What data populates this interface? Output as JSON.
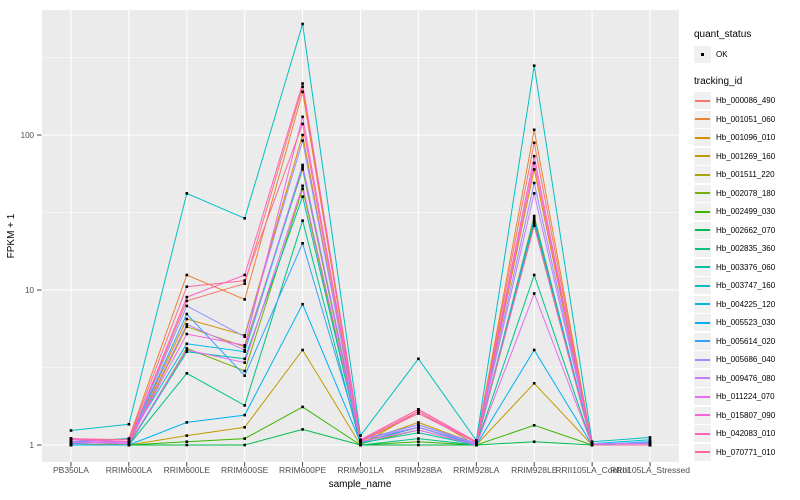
{
  "figure": {
    "bg": "#FFFFFF",
    "panel_bg": "#EBEBEB",
    "grid_color": "#FFFFFF",
    "tick_color": "#333333",
    "tick_label_color": "#4D4D4D",
    "axis_title_color": "#000000",
    "point_color": "#000000"
  },
  "legend": {
    "quant_status_title": "quant_status",
    "quant_ok_label": "OK",
    "tracking_id_title": "tracking_id"
  },
  "chart_data": {
    "type": "line",
    "title": "",
    "xlabel": "sample_name",
    "ylabel": "FPKM + 1",
    "y_scale": "log10",
    "ylim": [
      0.78,
      650
    ],
    "y_major_ticks": [
      1,
      10,
      100
    ],
    "y_tick_labels": [
      "1",
      "10",
      "100"
    ],
    "y_minor_ticks": [
      3.1623,
      31.623,
      316.23
    ],
    "grid": true,
    "legend_position": "right",
    "point_shape": "square",
    "categories": [
      "PB350LA",
      "RRIM600LA",
      "RRIM600LE",
      "RRIM600SE",
      "RRIM600PE",
      "RRIM901LA",
      "RRIM928BA",
      "RRIM928LA",
      "RRIM928LE",
      "RRII105LA_Control",
      "RRII105LA_Stressed"
    ],
    "series": [
      {
        "name": "Hb_000086_490",
        "color": "#F8766D",
        "values": [
          1.1,
          1.05,
          8.5,
          11.0,
          205,
          1.08,
          1.7,
          1.05,
          89,
          1.0,
          1.0
        ]
      },
      {
        "name": "Hb_001051_060",
        "color": "#EA8331",
        "values": [
          1.05,
          1.1,
          12.5,
          8.7,
          190,
          1.05,
          1.6,
          1.04,
          108,
          1.0,
          1.0
        ]
      },
      {
        "name": "Hb_001096_010",
        "color": "#D89000",
        "values": [
          1.02,
          1.05,
          6.5,
          5.1,
          100,
          1.04,
          1.4,
          1.02,
          60,
          1.0,
          1.0
        ]
      },
      {
        "name": "Hb_001269_160",
        "color": "#C09B00",
        "values": [
          1.0,
          1.0,
          1.15,
          1.3,
          4.1,
          1.0,
          1.65,
          1.0,
          2.5,
          1.0,
          1.0
        ]
      },
      {
        "name": "Hb_001511_220",
        "color": "#A3A500",
        "values": [
          1.0,
          1.02,
          5.8,
          4.3,
          60,
          1.04,
          1.3,
          1.0,
          30,
          1.0,
          1.0
        ]
      },
      {
        "name": "Hb_002078_180",
        "color": "#7CAE00",
        "values": [
          1.0,
          1.0,
          4.2,
          3.0,
          45,
          1.02,
          1.25,
          1.0,
          27,
          1.0,
          1.0
        ]
      },
      {
        "name": "Hb_002499_030",
        "color": "#39B600",
        "values": [
          1.0,
          1.0,
          1.05,
          1.1,
          1.76,
          1.0,
          1.05,
          1.0,
          1.34,
          1.0,
          1.0
        ]
      },
      {
        "name": "Hb_002662_070",
        "color": "#00BB4E",
        "values": [
          1.0,
          1.0,
          1.0,
          1.0,
          1.26,
          1.0,
          1.0,
          1.0,
          1.05,
          1.0,
          1.0
        ]
      },
      {
        "name": "Hb_002835_360",
        "color": "#00C087",
        "values": [
          1.0,
          1.0,
          2.9,
          1.8,
          28,
          1.0,
          1.1,
          1.0,
          12.5,
          1.0,
          1.0
        ]
      },
      {
        "name": "Hb_003376_060",
        "color": "#00C1A3",
        "values": [
          1.0,
          1.0,
          4.0,
          3.6,
          40,
          1.03,
          1.2,
          1.0,
          28,
          1.0,
          1.0
        ]
      },
      {
        "name": "Hb_003747_160",
        "color": "#00BFC4",
        "values": [
          1.24,
          1.36,
          42,
          29,
          520,
          1.15,
          3.6,
          1.07,
          280,
          1.05,
          1.12
        ]
      },
      {
        "name": "Hb_004225_120",
        "color": "#00BAE0",
        "values": [
          1.05,
          1.1,
          4.5,
          4.0,
          62,
          1.08,
          1.3,
          1.02,
          29,
          1.02,
          1.08
        ]
      },
      {
        "name": "Hb_005523_030",
        "color": "#00B0F6",
        "values": [
          1.0,
          1.0,
          1.4,
          1.56,
          8.1,
          1.04,
          1.3,
          1.0,
          4.1,
          1.0,
          1.05
        ]
      },
      {
        "name": "Hb_005614_020",
        "color": "#35A2FF",
        "values": [
          1.02,
          1.05,
          7.0,
          2.8,
          20,
          1.08,
          1.35,
          1.02,
          26,
          1.0,
          1.05
        ]
      },
      {
        "name": "Hb_005686_040",
        "color": "#9590FF",
        "values": [
          1.05,
          1.05,
          7.9,
          5.0,
          92,
          1.08,
          1.35,
          1.03,
          49,
          1.02,
          1.03
        ]
      },
      {
        "name": "Hb_009476_080",
        "color": "#C77CFF",
        "values": [
          1.05,
          1.04,
          6.0,
          4.1,
          64,
          1.08,
          1.3,
          1.02,
          42,
          1.02,
          1.02
        ]
      },
      {
        "name": "Hb_011224_070",
        "color": "#E76BF3",
        "values": [
          1.04,
          1.02,
          4.1,
          3.4,
          47,
          1.05,
          1.25,
          1.0,
          9.5,
          1.0,
          1.0
        ]
      },
      {
        "name": "Hb_015807_090",
        "color": "#FA62DB",
        "values": [
          1.08,
          1.05,
          5.2,
          4.4,
          131,
          1.08,
          1.6,
          1.04,
          66,
          1.0,
          1.0
        ]
      },
      {
        "name": "Hb_042083_010",
        "color": "#FF62BC",
        "values": [
          1.1,
          1.05,
          9.0,
          12.5,
          215,
          1.08,
          1.7,
          1.05,
          73,
          1.0,
          1.0
        ]
      },
      {
        "name": "Hb_070771_010",
        "color": "#FF6A98",
        "values": [
          1.1,
          1.08,
          10.5,
          11.5,
          118,
          1.06,
          1.65,
          1.04,
          26,
          1.0,
          1.0
        ]
      }
    ]
  }
}
